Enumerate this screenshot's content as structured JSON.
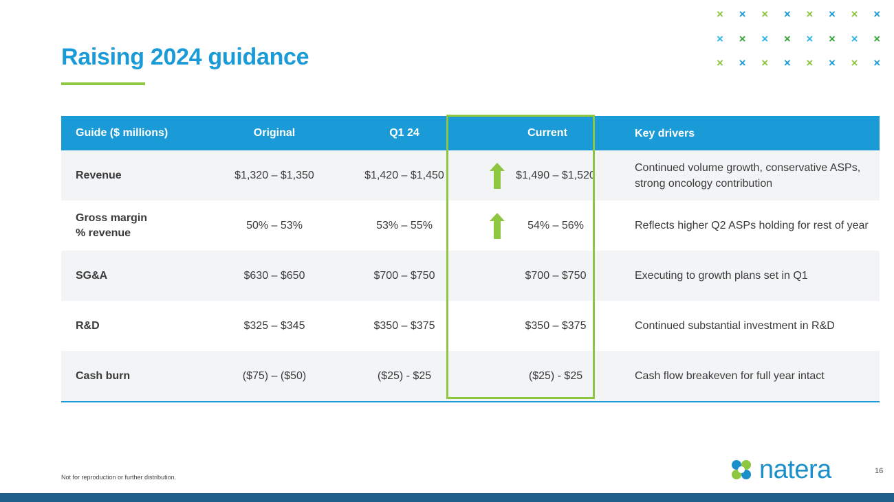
{
  "slide": {
    "title": "Raising 2024 guidance",
    "footer_note": "Not for reproduction or further distribution.",
    "page_number": "16",
    "logo_text": "natera"
  },
  "colors": {
    "title": "#1a9ad6",
    "header_bg": "#1a9ad6",
    "accent_green": "#8dc63f",
    "row_alt_bg": "#f2f4f6",
    "bottom_bar": "#1f5f8b"
  },
  "table": {
    "headers": {
      "label": "Guide ($ millions)",
      "original": "Original",
      "q1": "Q1 24",
      "current": "Current",
      "key": "Key drivers"
    },
    "rows": [
      {
        "label": "Revenue",
        "original": "$1,320 – $1,350",
        "q1": "$1,420 – $1,450",
        "current": "$1,490 – $1,520",
        "raised": true,
        "key": "Continued volume growth, conservative ASPs, strong oncology contribution"
      },
      {
        "label": "Gross margin\n% revenue",
        "original": "50% – 53%",
        "q1": "53% – 55%",
        "current": "54% – 56%",
        "raised": true,
        "key": "Reflects higher Q2 ASPs holding for rest of year"
      },
      {
        "label": "SG&A",
        "original": "$630 – $650",
        "q1": "$700 – $750",
        "current": "$700 – $750",
        "raised": false,
        "key": "Executing to growth plans set in Q1"
      },
      {
        "label": "R&D",
        "original": "$325 – $345",
        "q1": "$350 – $375",
        "current": "$350 – $375",
        "raised": false,
        "key": "Continued substantial investment in R&D"
      },
      {
        "label": "Cash burn",
        "original": "($75) – ($50)",
        "q1": "($25) - $25",
        "current": "($25) - $25",
        "raised": false,
        "key": "Cash flow breakeven for full year intact"
      }
    ]
  },
  "icons": {
    "decoration": "x-pattern-icon",
    "raised_marker": "up-arrow-icon",
    "logo_mark": "natera-logo-icon"
  }
}
